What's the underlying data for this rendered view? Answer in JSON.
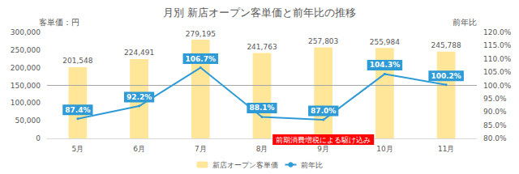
{
  "chart_data": {
    "type": "bar",
    "title": "月別 新店オープン客単価と前年比の推移",
    "y_label": "客単価：円",
    "y2_label": "前年比",
    "categories": [
      "5月",
      "6月",
      "7月",
      "8月",
      "9月",
      "10月",
      "11月"
    ],
    "series": [
      {
        "name": "新店オープン客単価",
        "type": "bar",
        "color": "#FFE699",
        "values": [
          201548,
          224491,
          279195,
          241763,
          257803,
          255984,
          245788
        ],
        "value_labels": [
          "201,548",
          "224,491",
          "279,195",
          "241,763",
          "257,803",
          "255,984",
          "245,788"
        ]
      },
      {
        "name": "前年比",
        "type": "line",
        "axis": "y2",
        "color": "#2E9BD6",
        "marker": "circle",
        "values": [
          87.4,
          92.2,
          106.7,
          88.1,
          87.0,
          104.3,
          100.2
        ],
        "value_labels": [
          "87.4%",
          "92.2%",
          "106.7%",
          "88.1%",
          "87.0%",
          "104.3%",
          "100.2%"
        ]
      }
    ],
    "ylim": [
      0,
      300000
    ],
    "yticks": [
      0,
      {
        "value": 50000,
        "label": "50,000"
      },
      {
        "value": 100000,
        "label": "100,000"
      },
      {
        "value": 150000,
        "label": "150,000"
      },
      {
        "value": 200000,
        "label": "200,000"
      },
      {
        "value": 250000,
        "label": "250,000"
      },
      {
        "value": 300000,
        "label": "300,000"
      }
    ],
    "y2lim": [
      80,
      120
    ],
    "y2ticks": [
      {
        "value": 80,
        "label": "80.0%"
      },
      {
        "value": 85,
        "label": "85.0%"
      },
      {
        "value": 90,
        "label": "90.0%"
      },
      {
        "value": 95,
        "label": "95.0%"
      },
      {
        "value": 100,
        "label": "100.0%"
      },
      {
        "value": 105,
        "label": "105.0%"
      },
      {
        "value": 110,
        "label": "110.0%"
      },
      {
        "value": 115,
        "label": "115.0%"
      },
      {
        "value": 120,
        "label": "120.0%"
      }
    ],
    "y2_reference": 100,
    "annotations": [
      {
        "text": "前期消費増税による駆け込み",
        "x": "9月"
      }
    ],
    "data_labels": true,
    "grid": false,
    "legend": "bottom"
  }
}
